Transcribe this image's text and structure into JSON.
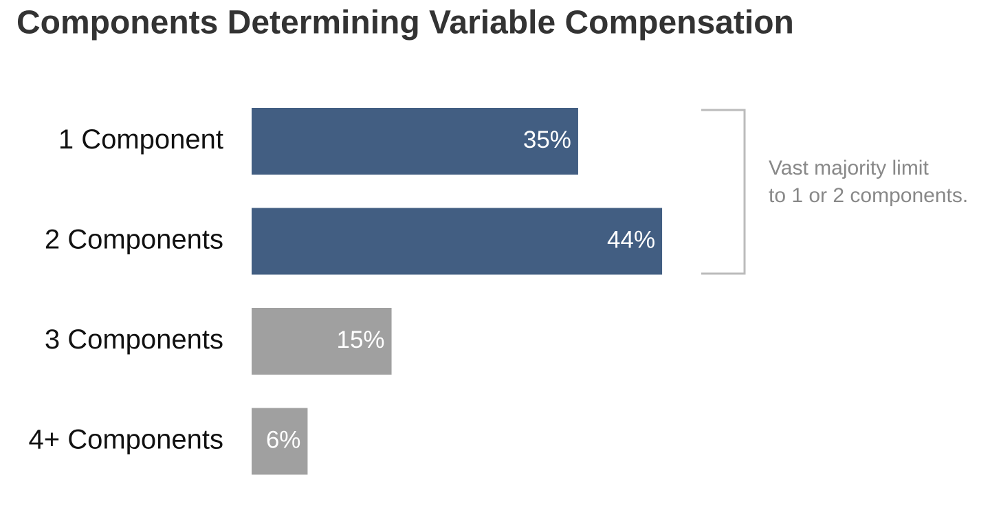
{
  "chart_data": {
    "type": "bar",
    "orientation": "horizontal",
    "title": "Components Determining Variable Compensation",
    "categories": [
      "1 Component",
      "2 Components",
      "3 Components",
      "4+ Components"
    ],
    "values": [
      35,
      44,
      15,
      6
    ],
    "value_labels": [
      "35%",
      "44%",
      "15%",
      "6%"
    ],
    "colors": [
      "#425e82",
      "#425e82",
      "#a0a0a0",
      "#a0a0a0"
    ],
    "annotation": [
      "Vast majority limit",
      "to 1 or 2 components."
    ]
  }
}
